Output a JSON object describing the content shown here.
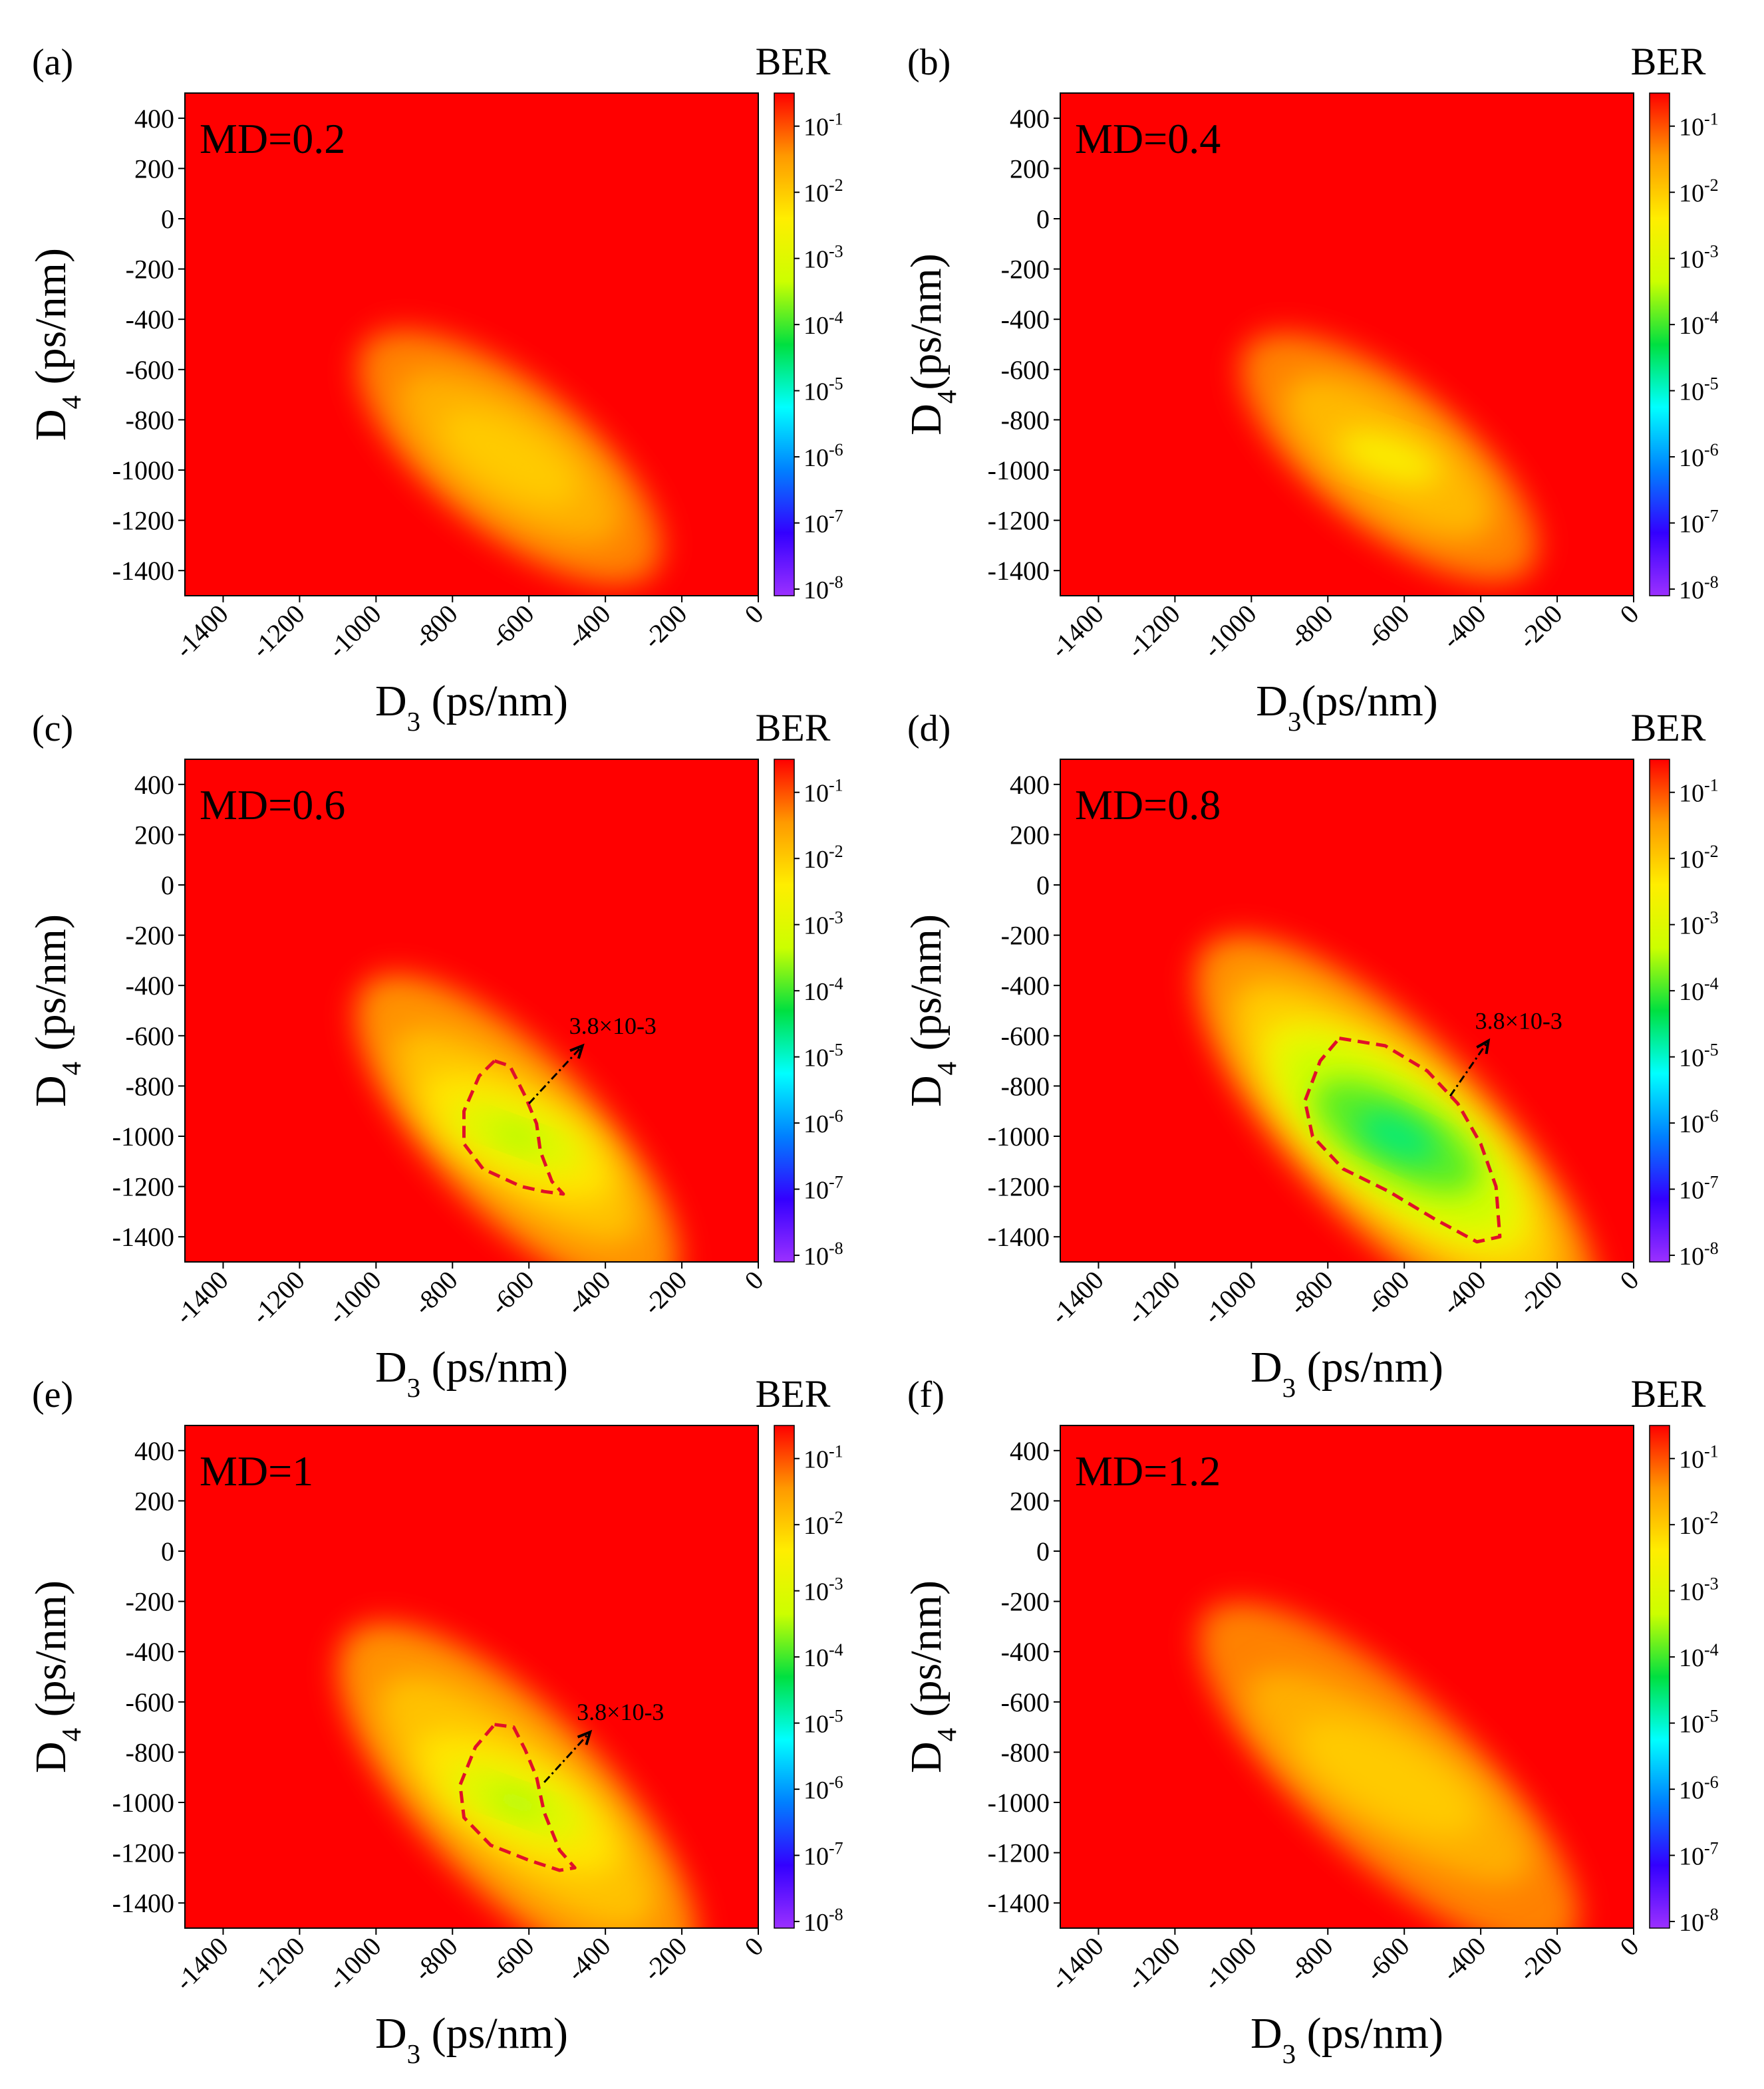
{
  "figure": {
    "colorbar_title": "BER",
    "colorbar_ticks": [
      {
        "base": "10",
        "exp": "-1",
        "log": -1
      },
      {
        "base": "10",
        "exp": "-2",
        "log": -2
      },
      {
        "base": "10",
        "exp": "-3",
        "log": -3
      },
      {
        "base": "10",
        "exp": "-4",
        "log": -4
      },
      {
        "base": "10",
        "exp": "-5",
        "log": -5
      },
      {
        "base": "10",
        "exp": "-6",
        "log": -6
      },
      {
        "base": "10",
        "exp": "-7",
        "log": -7
      },
      {
        "base": "10",
        "exp": "-8",
        "log": -8
      }
    ],
    "colorbar_range_log": [
      -8.1,
      -0.5
    ],
    "colorbar_colors": [
      "#9b30ff",
      "#3300ff",
      "#0080ff",
      "#00ffff",
      "#00e040",
      "#ccff00",
      "#ffee00",
      "#ff9900",
      "#ff0000"
    ]
  },
  "chart_data": [
    {
      "type": "heatmap",
      "panel_label": "(a)",
      "md_label": "MD=0.2",
      "xlabel": {
        "base": "D",
        "sub": "3",
        "rest": " (ps/nm)"
      },
      "ylabel": {
        "base": "D",
        "sub": "4",
        "rest": " (ps/nm)"
      },
      "xlim": [
        -1500,
        0
      ],
      "ylim": [
        -1500,
        500
      ],
      "xticks": [
        "-1400",
        "-1200",
        "-1000",
        "-800",
        "-600",
        "-400",
        "-200",
        "0"
      ],
      "yticks": [
        "400",
        "200",
        "0",
        "-200",
        "-400",
        "-600",
        "-800",
        "-1000",
        "-1200",
        "-1400"
      ],
      "colorbar_title": "BER",
      "center": {
        "d3": -650,
        "d4": -950
      },
      "regions": [
        {
          "half_width": 480,
          "half_height": 300,
          "angle_deg": -52,
          "log_ber": -1.3
        },
        {
          "half_width": 340,
          "half_height": 210,
          "angle_deg": -55,
          "log_ber": -1.7
        },
        {
          "half_width": 200,
          "half_height": 130,
          "angle_deg": -60,
          "log_ber": -2.0
        }
      ],
      "threshold_contour": null
    },
    {
      "type": "heatmap",
      "panel_label": "(b)",
      "md_label": "MD=0.4",
      "xlabel": {
        "base": "D",
        "sub": "3",
        "rest": "(ps/nm)"
      },
      "ylabel": {
        "base": "D",
        "sub": "4",
        "rest": "(ps/nm)"
      },
      "xlim": [
        -1500,
        0
      ],
      "ylim": [
        -1500,
        500
      ],
      "xticks": [
        "-1400",
        "-1200",
        "-1000",
        "-800",
        "-600",
        "-400",
        "-200",
        "0"
      ],
      "yticks": [
        "400",
        "200",
        "0",
        "-200",
        "-400",
        "-600",
        "-800",
        "-1000",
        "-1200",
        "-1400"
      ],
      "colorbar_title": "BER",
      "center": {
        "d3": -640,
        "d4": -950
      },
      "regions": [
        {
          "half_width": 470,
          "half_height": 290,
          "angle_deg": -52,
          "log_ber": -1.3
        },
        {
          "half_width": 320,
          "half_height": 200,
          "angle_deg": -55,
          "log_ber": -1.8
        },
        {
          "half_width": 140,
          "half_height": 80,
          "angle_deg": -70,
          "log_ber": -2.5
        }
      ],
      "threshold_contour": null
    },
    {
      "type": "heatmap",
      "panel_label": "(c)",
      "md_label": "MD=0.6",
      "xlabel": {
        "base": "D",
        "sub": "3",
        "rest": " (ps/nm)"
      },
      "ylabel": {
        "base": "D",
        "sub": "4",
        "rest": " (ps/nm)"
      },
      "xlim": [
        -1500,
        0
      ],
      "ylim": [
        -1500,
        500
      ],
      "xticks": [
        "-1400",
        "-1200",
        "-1000",
        "-800",
        "-600",
        "-400",
        "-200",
        "0"
      ],
      "yticks": [
        "400",
        "200",
        "0",
        "-200",
        "-400",
        "-600",
        "-800",
        "-1000",
        "-1200",
        "-1400"
      ],
      "colorbar_title": "BER",
      "center": {
        "d3": -630,
        "d4": -1000
      },
      "regions": [
        {
          "half_width": 560,
          "half_height": 320,
          "angle_deg": -45,
          "log_ber": -1.4
        },
        {
          "half_width": 400,
          "half_height": 220,
          "angle_deg": -50,
          "log_ber": -1.9
        },
        {
          "half_width": 280,
          "half_height": 170,
          "angle_deg": -60,
          "log_ber": -2.3
        },
        {
          "half_width": 180,
          "half_height": 110,
          "angle_deg": -70,
          "log_ber": -3.0
        },
        {
          "half_width": 70,
          "half_height": 40,
          "angle_deg": -70,
          "log_ber": -3.5
        }
      ],
      "threshold_contour": {
        "level": "3.8×10-3",
        "points": [
          [
            -690,
            -700
          ],
          [
            -650,
            -720
          ],
          [
            -610,
            -840
          ],
          [
            -580,
            -950
          ],
          [
            -570,
            -1060
          ],
          [
            -540,
            -1180
          ],
          [
            -510,
            -1230
          ],
          [
            -560,
            -1220
          ],
          [
            -620,
            -1200
          ],
          [
            -720,
            -1130
          ],
          [
            -770,
            -1030
          ],
          [
            -770,
            -900
          ],
          [
            -730,
            -760
          ]
        ],
        "arrow_from": [
          -600,
          -870
        ],
        "arrow_to": [
          -460,
          -640
        ]
      }
    },
    {
      "type": "heatmap",
      "panel_label": "(d)",
      "md_label": "MD=0.8",
      "xlabel": {
        "base": "D",
        "sub": "3",
        "rest": " (ps/nm)"
      },
      "ylabel": {
        "base": "D",
        "sub": "4",
        "rest": " (ps/nm)"
      },
      "xlim": [
        -1500,
        0
      ],
      "ylim": [
        -1500,
        500
      ],
      "xticks": [
        "-1400",
        "-1200",
        "-1000",
        "-800",
        "-600",
        "-400",
        "-200",
        "0"
      ],
      "yticks": [
        "400",
        "200",
        "0",
        "-200",
        "-400",
        "-600",
        "-800",
        "-1000",
        "-1200",
        "-1400"
      ],
      "colorbar_title": "BER",
      "center": {
        "d3": -620,
        "d4": -1000
      },
      "regions": [
        {
          "half_width": 700,
          "half_height": 380,
          "angle_deg": -45,
          "log_ber": -1.4
        },
        {
          "half_width": 560,
          "half_height": 290,
          "angle_deg": -47,
          "log_ber": -2.0
        },
        {
          "half_width": 440,
          "half_height": 250,
          "angle_deg": -50,
          "log_ber": -2.6
        },
        {
          "half_width": 360,
          "half_height": 210,
          "angle_deg": -52,
          "log_ber": -3.3
        },
        {
          "half_width": 240,
          "half_height": 150,
          "angle_deg": -60,
          "log_ber": -3.9
        },
        {
          "half_width": 110,
          "half_height": 70,
          "angle_deg": -65,
          "log_ber": -4.6
        }
      ],
      "threshold_contour": {
        "level": "3.8×10-3",
        "points": [
          [
            -770,
            -610
          ],
          [
            -650,
            -640
          ],
          [
            -540,
            -740
          ],
          [
            -460,
            -870
          ],
          [
            -400,
            -1030
          ],
          [
            -360,
            -1200
          ],
          [
            -350,
            -1400
          ],
          [
            -410,
            -1420
          ],
          [
            -520,
            -1330
          ],
          [
            -640,
            -1220
          ],
          [
            -760,
            -1130
          ],
          [
            -840,
            -1000
          ],
          [
            -860,
            -860
          ],
          [
            -820,
            -700
          ]
        ],
        "arrow_from": [
          -480,
          -840
        ],
        "arrow_to": [
          -380,
          -620
        ]
      }
    },
    {
      "type": "heatmap",
      "panel_label": "(e)",
      "md_label": "MD=1",
      "xlabel": {
        "base": "D",
        "sub": "3",
        "rest": " (ps/nm)"
      },
      "ylabel": {
        "base": "D",
        "sub": "4",
        "rest": " (ps/nm)"
      },
      "xlim": [
        -1500,
        0
      ],
      "ylim": [
        -1500,
        500
      ],
      "xticks": [
        "-1400",
        "-1200",
        "-1000",
        "-800",
        "-600",
        "-400",
        "-200",
        "0"
      ],
      "yticks": [
        "400",
        "200",
        "0",
        "-200",
        "-400",
        "-600",
        "-800",
        "-1000",
        "-1200",
        "-1400"
      ],
      "colorbar_title": "BER",
      "center": {
        "d3": -630,
        "d4": -1000
      },
      "regions": [
        {
          "half_width": 620,
          "half_height": 360,
          "angle_deg": -45,
          "log_ber": -1.4
        },
        {
          "half_width": 460,
          "half_height": 250,
          "angle_deg": -48,
          "log_ber": -1.9
        },
        {
          "half_width": 300,
          "half_height": 180,
          "angle_deg": -58,
          "log_ber": -2.3
        },
        {
          "half_width": 190,
          "half_height": 115,
          "angle_deg": -68,
          "log_ber": -3.0
        },
        {
          "half_width": 80,
          "half_height": 45,
          "angle_deg": -70,
          "log_ber": -3.5
        }
      ],
      "threshold_contour": {
        "level": "3.8×10-3",
        "points": [
          [
            -690,
            -690
          ],
          [
            -640,
            -700
          ],
          [
            -610,
            -790
          ],
          [
            -580,
            -900
          ],
          [
            -560,
            -1040
          ],
          [
            -520,
            -1190
          ],
          [
            -480,
            -1260
          ],
          [
            -520,
            -1270
          ],
          [
            -600,
            -1230
          ],
          [
            -700,
            -1170
          ],
          [
            -770,
            -1060
          ],
          [
            -780,
            -930
          ],
          [
            -740,
            -780
          ]
        ],
        "arrow_from": [
          -560,
          -920
        ],
        "arrow_to": [
          -440,
          -720
        ]
      }
    },
    {
      "type": "heatmap",
      "panel_label": "(f)",
      "md_label": "MD=1.2",
      "xlabel": {
        "base": "D",
        "sub": "3",
        "rest": " (ps/nm)"
      },
      "ylabel": {
        "base": "D",
        "sub": "4",
        "rest": " (ps/nm)"
      },
      "xlim": [
        -1500,
        0
      ],
      "ylim": [
        -1500,
        500
      ],
      "xticks": [
        "-1400",
        "-1200",
        "-1000",
        "-800",
        "-600",
        "-400",
        "-200",
        "0"
      ],
      "yticks": [
        "400",
        "200",
        "0",
        "-200",
        "-400",
        "-600",
        "-800",
        "-1000",
        "-1200",
        "-1400"
      ],
      "colorbar_title": "BER",
      "center": {
        "d3": -640,
        "d4": -900
      },
      "regions": [
        {
          "half_width": 640,
          "half_height": 330,
          "angle_deg": -48,
          "log_ber": -1.3
        },
        {
          "half_width": 440,
          "half_height": 220,
          "angle_deg": -55,
          "log_ber": -1.7
        },
        {
          "half_width": 260,
          "half_height": 150,
          "angle_deg": -62,
          "log_ber": -2.0
        }
      ],
      "threshold_contour": null
    }
  ]
}
